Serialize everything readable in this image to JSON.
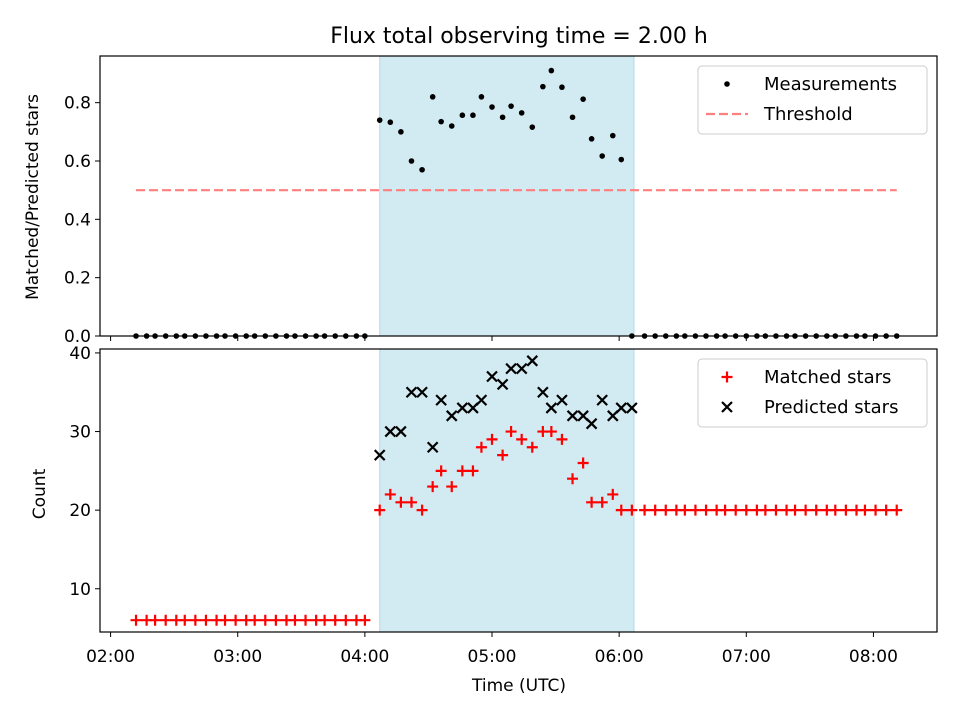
{
  "figure": {
    "title": "Flux total observing time = 2.00 h",
    "xlabel": "Time (UTC)"
  },
  "colors": {
    "highlight_band": "#add8e6",
    "measurement": "#000000",
    "threshold": "#ff7f7f",
    "matched": "#ff0000",
    "predicted": "#000000"
  },
  "chart_data": [
    {
      "type": "scatter",
      "xlabel": "",
      "ylabel": "Matched/Predicted stars",
      "xlim": [
        "01:55",
        "08:30"
      ],
      "ylim": [
        0,
        0.96
      ],
      "x_ticks": [
        "02:00",
        "03:00",
        "04:00",
        "05:00",
        "06:00",
        "07:00",
        "08:00"
      ],
      "y_ticks": [
        "0.0",
        "0.2",
        "0.4",
        "0.6",
        "0.8"
      ],
      "y_tick_values": [
        0,
        0.2,
        0.4,
        0.6,
        0.8
      ],
      "highlight_band": {
        "x_start": "04:07",
        "x_end": "06:07"
      },
      "legend": {
        "position": "upper right"
      },
      "series": [
        {
          "name": "Measurements",
          "kind": "points",
          "x": [
            "02:12",
            "02:17",
            "02:21",
            "02:26",
            "02:31",
            "02:35",
            "02:40",
            "02:45",
            "02:50",
            "02:54",
            "02:59",
            "03:04",
            "03:08",
            "03:13",
            "03:18",
            "03:23",
            "03:27",
            "03:32",
            "03:37",
            "03:41",
            "03:46",
            "03:51",
            "03:56",
            "04:00",
            "04:07",
            "04:12",
            "04:17",
            "04:22",
            "04:27",
            "04:32",
            "04:36",
            "04:41",
            "04:46",
            "04:51",
            "04:55",
            "05:00",
            "05:05",
            "05:09",
            "05:14",
            "05:19",
            "05:24",
            "05:28",
            "05:33",
            "05:38",
            "05:43",
            "05:47",
            "05:52",
            "05:57",
            "06:01",
            "06:06",
            "06:12",
            "06:17",
            "06:22",
            "06:27",
            "06:31",
            "06:36",
            "06:41",
            "06:46",
            "06:50",
            "06:55",
            "07:00",
            "07:05",
            "07:09",
            "07:14",
            "07:19",
            "07:23",
            "07:28",
            "07:33",
            "07:38",
            "07:42",
            "07:47",
            "07:52",
            "07:56",
            "08:01",
            "08:06",
            "08:11"
          ],
          "y": [
            0,
            0,
            0,
            0,
            0,
            0,
            0,
            0,
            0,
            0,
            0,
            0,
            0,
            0,
            0,
            0,
            0,
            0,
            0,
            0,
            0,
            0,
            0,
            0,
            0.74,
            0.733,
            0.7,
            0.6,
            0.57,
            0.82,
            0.735,
            0.72,
            0.757,
            0.757,
            0.82,
            0.785,
            0.75,
            0.788,
            0.765,
            0.716,
            0.855,
            0.91,
            0.853,
            0.75,
            0.812,
            0.676,
            0.617,
            0.687,
            0.605,
            0,
            0,
            0,
            0,
            0,
            0,
            0,
            0,
            0,
            0,
            0,
            0,
            0,
            0,
            0,
            0,
            0,
            0,
            0,
            0,
            0,
            0,
            0,
            0,
            0,
            0,
            0
          ]
        },
        {
          "name": "Threshold",
          "kind": "dashed-line",
          "x": [
            "02:12",
            "08:11"
          ],
          "y": [
            0.5,
            0.5
          ]
        }
      ]
    },
    {
      "type": "scatter",
      "xlabel": "Time (UTC)",
      "ylabel": "Count",
      "xlim": [
        "01:55",
        "08:30"
      ],
      "ylim": [
        4.5,
        40.5
      ],
      "x_ticks": [
        "02:00",
        "03:00",
        "04:00",
        "05:00",
        "06:00",
        "07:00",
        "08:00"
      ],
      "y_ticks": [
        "10",
        "20",
        "30",
        "40"
      ],
      "y_tick_values": [
        10,
        20,
        30,
        40
      ],
      "highlight_band": {
        "x_start": "04:07",
        "x_end": "06:07"
      },
      "legend": {
        "position": "upper right"
      },
      "series": [
        {
          "name": "Matched stars",
          "kind": "plus",
          "x": [
            "02:12",
            "02:17",
            "02:21",
            "02:26",
            "02:31",
            "02:35",
            "02:40",
            "02:45",
            "02:50",
            "02:54",
            "02:59",
            "03:04",
            "03:08",
            "03:13",
            "03:18",
            "03:23",
            "03:27",
            "03:32",
            "03:37",
            "03:41",
            "03:46",
            "03:51",
            "03:56",
            "04:00",
            "04:07",
            "04:12",
            "04:17",
            "04:22",
            "04:27",
            "04:32",
            "04:36",
            "04:41",
            "04:46",
            "04:51",
            "04:55",
            "05:00",
            "05:05",
            "05:09",
            "05:14",
            "05:19",
            "05:24",
            "05:28",
            "05:33",
            "05:38",
            "05:43",
            "05:47",
            "05:52",
            "05:57",
            "06:01",
            "06:06",
            "06:12",
            "06:17",
            "06:22",
            "06:27",
            "06:31",
            "06:36",
            "06:41",
            "06:46",
            "06:50",
            "06:55",
            "07:00",
            "07:05",
            "07:09",
            "07:14",
            "07:19",
            "07:23",
            "07:28",
            "07:33",
            "07:38",
            "07:42",
            "07:47",
            "07:52",
            "07:56",
            "08:01",
            "08:06",
            "08:11"
          ],
          "y": [
            6,
            6,
            6,
            6,
            6,
            6,
            6,
            6,
            6,
            6,
            6,
            6,
            6,
            6,
            6,
            6,
            6,
            6,
            6,
            6,
            6,
            6,
            6,
            6,
            20,
            22,
            21,
            21,
            20,
            23,
            25,
            23,
            25,
            25,
            28,
            29,
            27,
            30,
            29,
            28,
            30,
            30,
            29,
            24,
            26,
            21,
            21,
            22,
            20,
            20,
            20,
            20,
            20,
            20,
            20,
            20,
            20,
            20,
            20,
            20,
            20,
            20,
            20,
            20,
            20,
            20,
            20,
            20,
            20,
            20,
            20,
            20,
            20,
            20,
            20,
            20
          ]
        },
        {
          "name": "Predicted stars",
          "kind": "x",
          "x": [
            "04:07",
            "04:12",
            "04:17",
            "04:22",
            "04:27",
            "04:32",
            "04:36",
            "04:41",
            "04:46",
            "04:51",
            "04:55",
            "05:00",
            "05:05",
            "05:09",
            "05:14",
            "05:19",
            "05:24",
            "05:28",
            "05:33",
            "05:38",
            "05:43",
            "05:47",
            "05:52",
            "05:57",
            "06:01",
            "06:06"
          ],
          "y": [
            27,
            30,
            30,
            35,
            35,
            28,
            34,
            32,
            33,
            33,
            34,
            37,
            36,
            38,
            38,
            39,
            35,
            33,
            34,
            32,
            32,
            31,
            34,
            32,
            33,
            33
          ]
        }
      ]
    }
  ]
}
